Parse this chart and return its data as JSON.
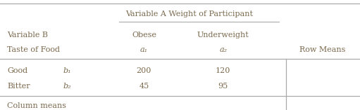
{
  "title": "Variable A Weight of Participant",
  "col_header_1": "Obese",
  "col_header_2": "Underweight",
  "col_sub_1": "a₁",
  "col_sub_2": "a₂",
  "var_b_label": "Variable B",
  "taste_label": "Taste of Food",
  "row1_label": "Good",
  "row1_sub": "b₁",
  "row2_label": "Bitter",
  "row2_sub": "b₂",
  "row1_val1": "200",
  "row1_val2": "120",
  "row2_val1": "45",
  "row2_val2": "95",
  "col_means_label": "Column means",
  "row_means_label": "Row Means",
  "bg_color": "#ffffff",
  "text_color": "#7b6a4e",
  "line_color": "#aaaaaa"
}
